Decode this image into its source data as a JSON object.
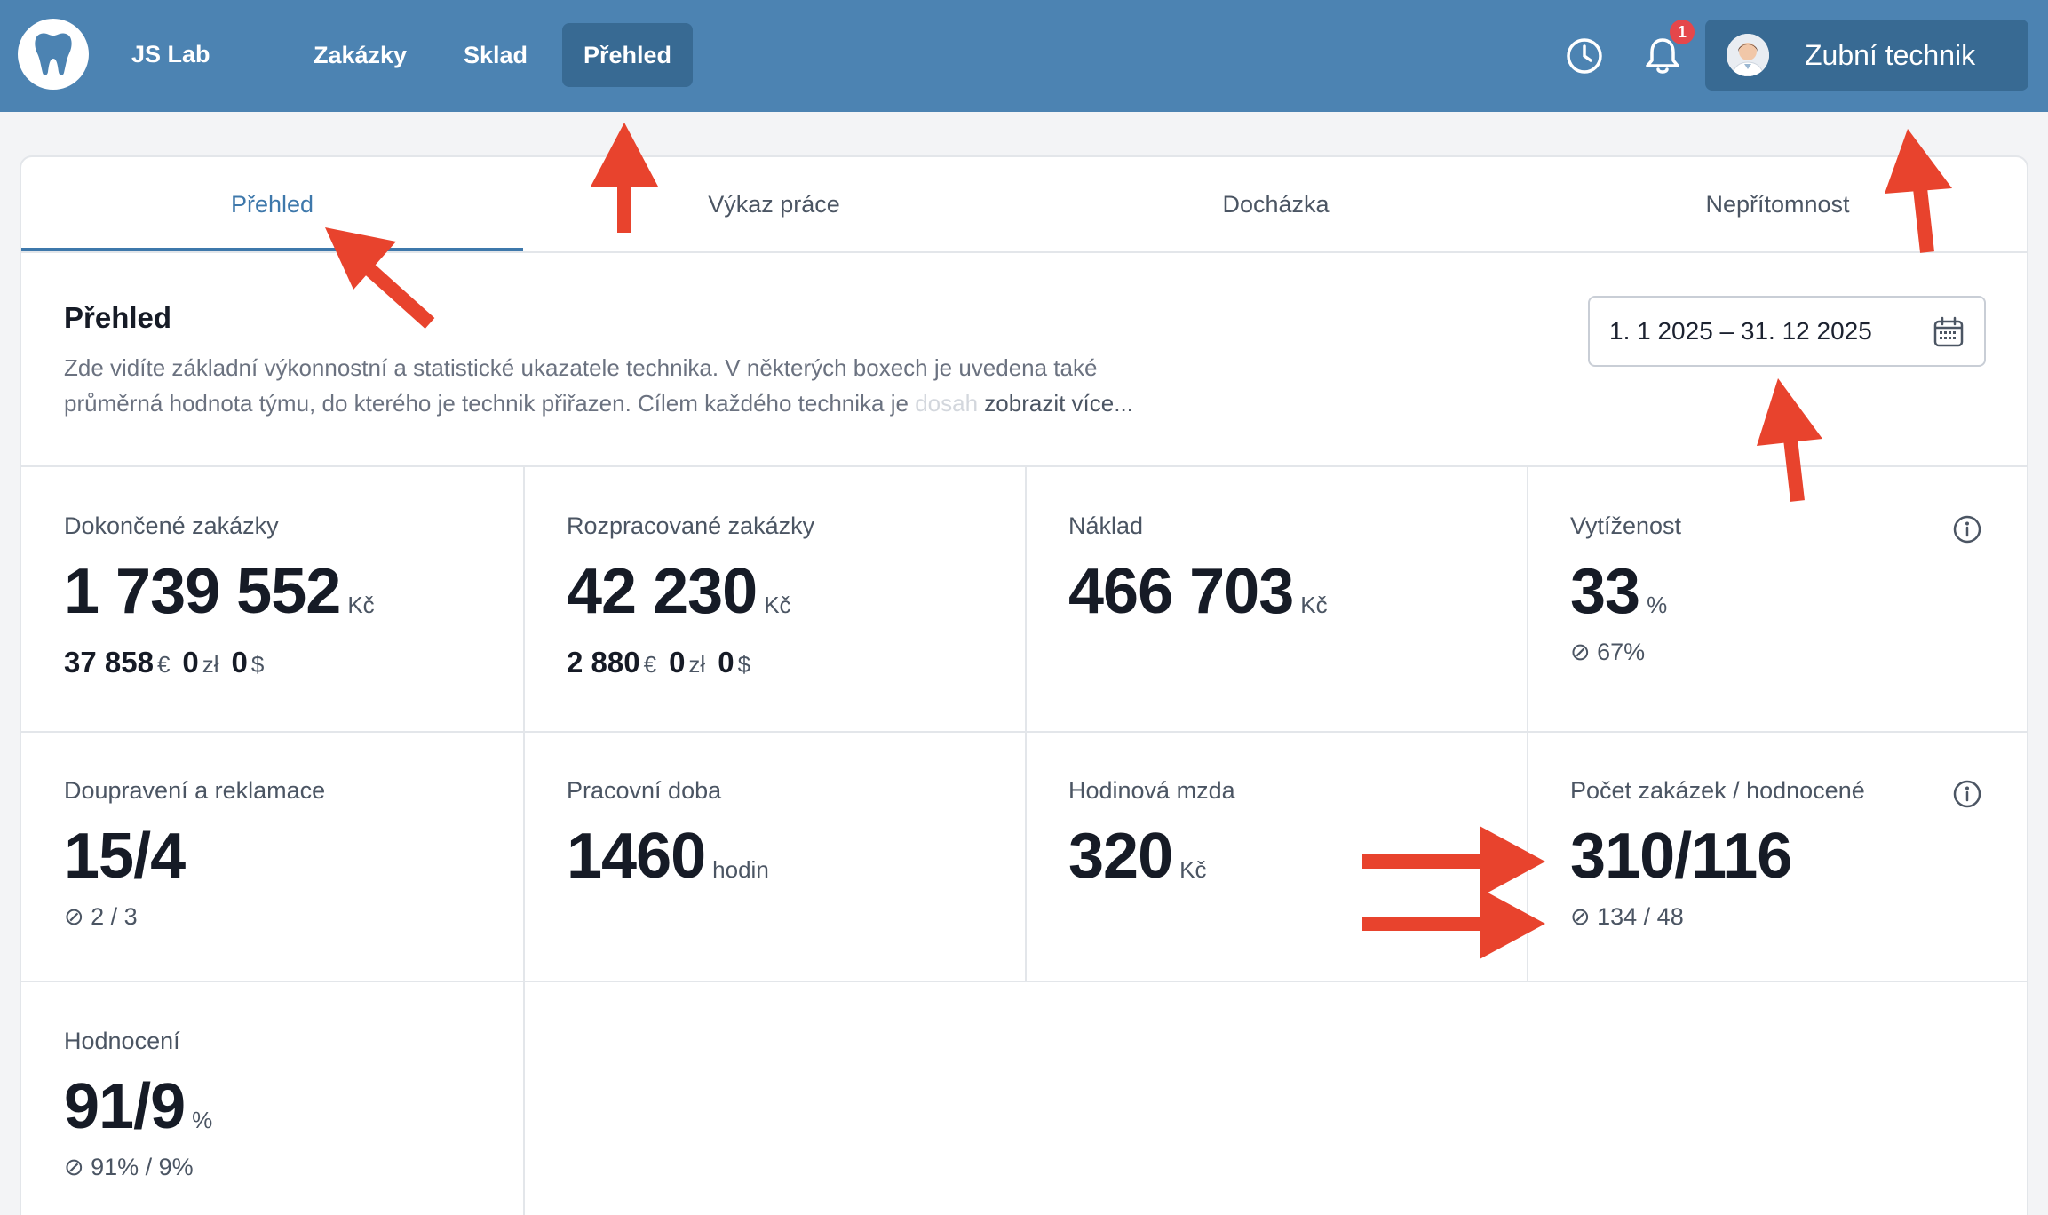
{
  "header": {
    "brand": "JS Lab",
    "nav": [
      "Zakázky",
      "Sklad",
      "Přehled"
    ],
    "active_nav": "Přehled",
    "notification_count": "1",
    "user_label": "Zubní technik",
    "accent_color": "#4c83b2"
  },
  "tabs": [
    "Přehled",
    "Výkaz práce",
    "Docházka",
    "Nepřítomnost"
  ],
  "intro": {
    "title": "Přehled",
    "line1": "Zde vidíte základní výkonnostní a statistické ukazatele technika. V některých boxech je uvedena také",
    "line2": "průměrná hodnota týmu, do kterého je technik přiřazen. Cílem každého technika je",
    "line2_fade": " dosah",
    "more": "zobrazit více..."
  },
  "date_range": "1. 1 2025 – 31. 12 2025",
  "stats": {
    "dokoncene": {
      "label": "Dokončené zakázky",
      "value": "1 739 552",
      "unit": "Kč",
      "eur": "37 858",
      "eur_sym": "€",
      "pln": "0",
      "pln_sym": "zł",
      "usd": "0",
      "usd_sym": "$"
    },
    "rozpracovane": {
      "label": "Rozpracované zakázky",
      "value": "42 230",
      "unit": "Kč",
      "eur": "2 880",
      "eur_sym": "€",
      "pln": "0",
      "pln_sym": "zł",
      "usd": "0",
      "usd_sym": "$"
    },
    "naklad": {
      "label": "Náklad",
      "value": "466 703",
      "unit": "Kč"
    },
    "vytizenost": {
      "label": "Vytíženost",
      "value": "33",
      "unit": "%",
      "avg": "⊘ 67%"
    },
    "doupraveni": {
      "label": "Doupravení a reklamace",
      "value": "15/4",
      "avg": "⊘ 2 / 3"
    },
    "pracovni": {
      "label": "Pracovní doba",
      "value": "1460",
      "unit": "hodin"
    },
    "mzda": {
      "label": "Hodinová mzda",
      "value": "320",
      "unit": "Kč"
    },
    "pocet": {
      "label": "Počet zakázek / hodnocené",
      "value": "310/116",
      "avg": "⊘ 134 / 48"
    },
    "hodnoceni": {
      "label": "Hodnocení",
      "value": "91/9",
      "unit": "%",
      "avg": "⊘ 91% / 9%"
    }
  }
}
